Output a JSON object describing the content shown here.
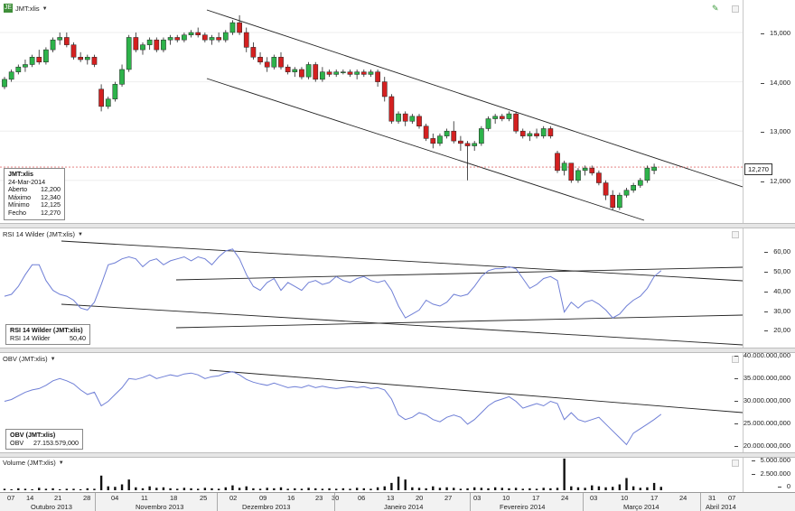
{
  "symbol": "JMT:xlis",
  "colors": {
    "up": "#2db34a",
    "down": "#d42020",
    "line": "#6f7fd6",
    "trend": "#222222",
    "dotted": "#e07070"
  },
  "price_panel": {
    "header": "JMT:xlis",
    "last_price_tag": "12,270",
    "y_ticks": [
      "15,000",
      "14,000",
      "13,000",
      "12,000"
    ],
    "info": {
      "title": "JMT:xlis",
      "date": "24-Mar-2014",
      "rows": [
        {
          "label": "Aberto",
          "value": "12,200"
        },
        {
          "label": "Máximo",
          "value": "12,340"
        },
        {
          "label": "Mínimo",
          "value": "12,125"
        },
        {
          "label": "Fecho",
          "value": "12,270"
        }
      ]
    }
  },
  "rsi_panel": {
    "header": "RSI 14 Wilder (JMT:xlis)",
    "y_ticks": [
      "60,00",
      "50,00",
      "40,00",
      "30,00",
      "20,00"
    ],
    "info": {
      "title": "RSI 14 Wilder (JMT:xlis)",
      "row_label": "RSI 14 Wilder",
      "row_value": "50,40"
    }
  },
  "obv_panel": {
    "header": "OBV (JMT:xlis)",
    "y_ticks": [
      "40.000.000,000",
      "35.000.000,000",
      "30.000.000,000",
      "25.000.000,000",
      "20.000.000,000"
    ],
    "info": {
      "title": "OBV (JMT:xlis)",
      "row_label": "OBV",
      "row_value": "27.153.579,000"
    }
  },
  "volume_panel": {
    "header": "Volume (JMT:xlis)",
    "y_ticks": [
      "5.000.000",
      "2.500.000",
      "0"
    ]
  },
  "date_axis": {
    "days": [
      "07",
      "14",
      "21",
      "28",
      "04",
      "11",
      "18",
      "25",
      "02",
      "09",
      "16",
      "23",
      "30",
      "06",
      "13",
      "20",
      "27",
      "03",
      "10",
      "17",
      "24",
      "03",
      "10",
      "17",
      "24",
      "31",
      "07"
    ],
    "months": [
      "Outubro 2013",
      "Novembro 2013",
      "Dezembro 2013",
      "Janeiro 2014",
      "Fevereiro 2014",
      "Março 2014",
      "Abril 2014"
    ]
  },
  "chart_data": {
    "type": "candlestick",
    "ylim": [
      11800,
      15600
    ],
    "candles": [
      {
        "o": 13900,
        "h": 14100,
        "l": 13850,
        "c": 14050
      },
      {
        "o": 14050,
        "h": 14250,
        "l": 14000,
        "c": 14200
      },
      {
        "o": 14200,
        "h": 14350,
        "l": 14150,
        "c": 14300
      },
      {
        "o": 14300,
        "h": 14450,
        "l": 14200,
        "c": 14350
      },
      {
        "o": 14350,
        "h": 14550,
        "l": 14300,
        "c": 14500
      },
      {
        "o": 14500,
        "h": 14650,
        "l": 14350,
        "c": 14400
      },
      {
        "o": 14400,
        "h": 14700,
        "l": 14350,
        "c": 14650
      },
      {
        "o": 14650,
        "h": 14900,
        "l": 14600,
        "c": 14850
      },
      {
        "o": 14850,
        "h": 15000,
        "l": 14750,
        "c": 14900
      },
      {
        "o": 14900,
        "h": 15000,
        "l": 14700,
        "c": 14750
      },
      {
        "o": 14750,
        "h": 14800,
        "l": 14450,
        "c": 14500
      },
      {
        "o": 14500,
        "h": 14600,
        "l": 14400,
        "c": 14450
      },
      {
        "o": 14450,
        "h": 14550,
        "l": 14350,
        "c": 14500
      },
      {
        "o": 14500,
        "h": 14550,
        "l": 14300,
        "c": 14350
      },
      {
        "o": 13850,
        "h": 13950,
        "l": 13400,
        "c": 13500
      },
      {
        "o": 13500,
        "h": 13700,
        "l": 13450,
        "c": 13650
      },
      {
        "o": 13650,
        "h": 14000,
        "l": 13600,
        "c": 13950
      },
      {
        "o": 13950,
        "h": 14350,
        "l": 13900,
        "c": 14250
      },
      {
        "o": 14250,
        "h": 14950,
        "l": 14200,
        "c": 14900
      },
      {
        "o": 14900,
        "h": 15000,
        "l": 14600,
        "c": 14650
      },
      {
        "o": 14650,
        "h": 14800,
        "l": 14550,
        "c": 14750
      },
      {
        "o": 14750,
        "h": 14900,
        "l": 14650,
        "c": 14850
      },
      {
        "o": 14850,
        "h": 14900,
        "l": 14600,
        "c": 14650
      },
      {
        "o": 14650,
        "h": 14900,
        "l": 14600,
        "c": 14850
      },
      {
        "o": 14850,
        "h": 14950,
        "l": 14750,
        "c": 14900
      },
      {
        "o": 14900,
        "h": 14950,
        "l": 14800,
        "c": 14850
      },
      {
        "o": 14850,
        "h": 15000,
        "l": 14800,
        "c": 14950
      },
      {
        "o": 14950,
        "h": 15050,
        "l": 14900,
        "c": 15000
      },
      {
        "o": 15000,
        "h": 15100,
        "l": 14900,
        "c": 14950
      },
      {
        "o": 14950,
        "h": 15000,
        "l": 14800,
        "c": 14850
      },
      {
        "o": 14850,
        "h": 14950,
        "l": 14750,
        "c": 14900
      },
      {
        "o": 14900,
        "h": 15000,
        "l": 14800,
        "c": 14850
      },
      {
        "o": 14850,
        "h": 15050,
        "l": 14800,
        "c": 15000
      },
      {
        "o": 15000,
        "h": 15250,
        "l": 14950,
        "c": 15200
      },
      {
        "o": 15200,
        "h": 15350,
        "l": 14950,
        "c": 15000
      },
      {
        "o": 15000,
        "h": 15100,
        "l": 14600,
        "c": 14700
      },
      {
        "o": 14700,
        "h": 14800,
        "l": 14450,
        "c": 14500
      },
      {
        "o": 14500,
        "h": 14600,
        "l": 14350,
        "c": 14400
      },
      {
        "o": 14400,
        "h": 14500,
        "l": 14200,
        "c": 14300
      },
      {
        "o": 14300,
        "h": 14550,
        "l": 14250,
        "c": 14500
      },
      {
        "o": 14500,
        "h": 14600,
        "l": 14250,
        "c": 14300
      },
      {
        "o": 14300,
        "h": 14350,
        "l": 14150,
        "c": 14200
      },
      {
        "o": 14200,
        "h": 14300,
        "l": 14100,
        "c": 14250
      },
      {
        "o": 14250,
        "h": 14300,
        "l": 14050,
        "c": 14100
      },
      {
        "o": 14100,
        "h": 14400,
        "l": 14050,
        "c": 14350
      },
      {
        "o": 14350,
        "h": 14400,
        "l": 14000,
        "c": 14050
      },
      {
        "o": 14050,
        "h": 14300,
        "l": 14000,
        "c": 14200
      },
      {
        "o": 14200,
        "h": 14250,
        "l": 14100,
        "c": 14150
      },
      {
        "o": 14150,
        "h": 14250,
        "l": 14100,
        "c": 14200
      },
      {
        "o": 14200,
        "h": 14250,
        "l": 14150,
        "c": 14200
      },
      {
        "o": 14200,
        "h": 14250,
        "l": 14100,
        "c": 14150
      },
      {
        "o": 14150,
        "h": 14250,
        "l": 14050,
        "c": 14200
      },
      {
        "o": 14200,
        "h": 14250,
        "l": 14100,
        "c": 14150
      },
      {
        "o": 14150,
        "h": 14250,
        "l": 14100,
        "c": 14200
      },
      {
        "o": 14200,
        "h": 14250,
        "l": 13900,
        "c": 14000
      },
      {
        "o": 14000,
        "h": 14100,
        "l": 13600,
        "c": 13700
      },
      {
        "o": 13700,
        "h": 13750,
        "l": 13150,
        "c": 13200
      },
      {
        "o": 13200,
        "h": 13400,
        "l": 13150,
        "c": 13350
      },
      {
        "o": 13350,
        "h": 13400,
        "l": 13100,
        "c": 13200
      },
      {
        "o": 13200,
        "h": 13350,
        "l": 13150,
        "c": 13300
      },
      {
        "o": 13300,
        "h": 13350,
        "l": 13050,
        "c": 13100
      },
      {
        "o": 13100,
        "h": 13150,
        "l": 12800,
        "c": 12850
      },
      {
        "o": 12850,
        "h": 12950,
        "l": 12650,
        "c": 12750
      },
      {
        "o": 12750,
        "h": 12950,
        "l": 12700,
        "c": 12900
      },
      {
        "o": 12900,
        "h": 13050,
        "l": 12850,
        "c": 13000
      },
      {
        "o": 13000,
        "h": 13200,
        "l": 12750,
        "c": 12800
      },
      {
        "o": 12800,
        "h": 12900,
        "l": 12600,
        "c": 12750
      },
      {
        "o": 12750,
        "h": 12800,
        "l": 12000,
        "c": 12700
      },
      {
        "o": 12700,
        "h": 12800,
        "l": 12600,
        "c": 12750
      },
      {
        "o": 12750,
        "h": 13100,
        "l": 12700,
        "c": 13050
      },
      {
        "o": 13050,
        "h": 13300,
        "l": 13000,
        "c": 13250
      },
      {
        "o": 13250,
        "h": 13350,
        "l": 13150,
        "c": 13300
      },
      {
        "o": 13300,
        "h": 13350,
        "l": 13200,
        "c": 13250
      },
      {
        "o": 13250,
        "h": 13400,
        "l": 13200,
        "c": 13350
      },
      {
        "o": 13350,
        "h": 13400,
        "l": 12950,
        "c": 13000
      },
      {
        "o": 13000,
        "h": 13050,
        "l": 12850,
        "c": 12900
      },
      {
        "o": 12900,
        "h": 13000,
        "l": 12800,
        "c": 12950
      },
      {
        "o": 12950,
        "h": 13050,
        "l": 12850,
        "c": 12900
      },
      {
        "o": 12900,
        "h": 13100,
        "l": 12850,
        "c": 13050
      },
      {
        "o": 13050,
        "h": 13100,
        "l": 12850,
        "c": 12900
      },
      {
        "o": 12550,
        "h": 12600,
        "l": 12150,
        "c": 12200
      },
      {
        "o": 12200,
        "h": 12400,
        "l": 12100,
        "c": 12350
      },
      {
        "o": 12350,
        "h": 12350,
        "l": 11950,
        "c": 12000
      },
      {
        "o": 12000,
        "h": 12250,
        "l": 11950,
        "c": 12200
      },
      {
        "o": 12200,
        "h": 12300,
        "l": 12100,
        "c": 12250
      },
      {
        "o": 12250,
        "h": 12300,
        "l": 12100,
        "c": 12150
      },
      {
        "o": 12150,
        "h": 12200,
        "l": 11900,
        "c": 11950
      },
      {
        "o": 11950,
        "h": 12000,
        "l": 11600,
        "c": 11700
      },
      {
        "o": 11700,
        "h": 11800,
        "l": 11400,
        "c": 11450
      },
      {
        "o": 11450,
        "h": 11750,
        "l": 11400,
        "c": 11700
      },
      {
        "o": 11700,
        "h": 11850,
        "l": 11650,
        "c": 11800
      },
      {
        "o": 11800,
        "h": 11950,
        "l": 11750,
        "c": 11900
      },
      {
        "o": 11900,
        "h": 12050,
        "l": 11850,
        "c": 12000
      },
      {
        "o": 12000,
        "h": 12300,
        "l": 11950,
        "c": 12250
      },
      {
        "o": 12200,
        "h": 12340,
        "l": 12125,
        "c": 12270
      }
    ],
    "rsi": [
      37,
      38,
      42,
      48,
      53,
      53,
      45,
      40,
      38,
      37,
      35,
      31,
      30,
      34,
      43,
      53,
      54,
      56,
      57,
      56,
      52,
      55,
      56,
      53,
      55,
      56,
      57,
      55,
      57,
      56,
      53,
      57,
      60,
      61,
      56,
      48,
      42,
      40,
      44,
      46,
      40,
      44,
      42,
      40,
      44,
      45,
      43,
      44,
      47,
      45,
      44,
      46,
      47,
      45,
      44,
      45,
      40,
      32,
      26,
      28,
      30,
      35,
      33,
      32,
      34,
      38,
      37,
      38,
      42,
      47,
      50,
      51,
      51,
      52,
      51,
      46,
      41,
      43,
      46,
      47,
      45,
      29,
      34,
      31,
      34,
      35,
      33,
      30,
      26,
      28,
      32,
      35,
      37,
      41,
      47,
      50
    ],
    "obv": [
      30.0,
      30.4,
      31.2,
      32.0,
      32.5,
      32.8,
      33.5,
      34.5,
      35.0,
      34.5,
      33.8,
      32.5,
      31.5,
      32.0,
      29.0,
      30.0,
      31.5,
      33.0,
      35.0,
      34.8,
      35.2,
      35.8,
      35.0,
      35.4,
      35.8,
      35.5,
      36.0,
      36.2,
      35.8,
      35.0,
      35.4,
      35.6,
      36.2,
      36.5,
      35.8,
      34.8,
      34.2,
      33.8,
      33.5,
      34.0,
      33.5,
      33.0,
      33.2,
      33.0,
      33.5,
      33.0,
      33.3,
      33.0,
      32.8,
      33.0,
      33.2,
      33.0,
      33.2,
      32.8,
      33.0,
      32.5,
      30.5,
      27.0,
      26.0,
      26.5,
      27.5,
      27.0,
      26.0,
      25.5,
      26.5,
      27.0,
      26.5,
      25.0,
      26.0,
      27.5,
      29.0,
      30.0,
      30.5,
      31.0,
      30.0,
      28.5,
      29.0,
      29.5,
      29.0,
      30.0,
      29.5,
      26.0,
      27.5,
      26.0,
      25.5,
      26.0,
      26.5,
      25.0,
      23.5,
      22.0,
      20.5,
      23.0,
      24.0,
      25.0,
      26.0,
      27.15
    ],
    "volume": [
      0.3,
      0.2,
      0.4,
      0.3,
      0.2,
      0.5,
      0.3,
      0.4,
      0.2,
      0.3,
      0.3,
      0.2,
      0.4,
      0.3,
      3.0,
      0.8,
      0.7,
      1.2,
      2.2,
      0.6,
      0.4,
      0.8,
      0.5,
      0.6,
      0.4,
      0.3,
      0.5,
      0.4,
      0.3,
      0.5,
      0.4,
      0.3,
      0.6,
      1.0,
      0.5,
      0.8,
      0.4,
      0.3,
      0.5,
      0.4,
      0.6,
      0.3,
      0.4,
      0.3,
      0.5,
      0.4,
      0.3,
      0.4,
      0.3,
      0.4,
      0.3,
      0.5,
      0.4,
      0.3,
      0.6,
      0.8,
      1.5,
      2.8,
      2.2,
      0.6,
      0.5,
      0.4,
      0.8,
      0.5,
      0.6,
      0.5,
      0.3,
      0.4,
      0.6,
      0.5,
      0.4,
      0.6,
      0.5,
      0.4,
      0.5,
      0.3,
      0.4,
      0.3,
      0.5,
      0.4,
      0.5,
      6.5,
      0.8,
      0.6,
      0.5,
      1.0,
      0.8,
      0.6,
      0.7,
      1.2,
      2.5,
      0.8,
      0.5,
      0.6,
      1.5,
      0.7
    ]
  }
}
